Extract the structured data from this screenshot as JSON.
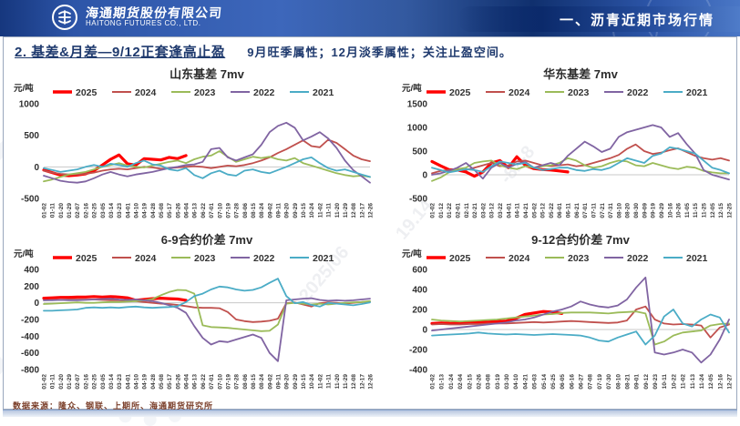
{
  "header": {
    "company_cn": "海通期货股份有限公司",
    "company_en": "HAITONG FUTURES CO., LTD.",
    "section_title": "一、沥青近期市场行情"
  },
  "page": {
    "title": "2. 基差&月差—9/12正套逢高止盈",
    "subtitle": "9月旺季属性；12月淡季属性；关注止盈空间。",
    "source_note": "数据来源：隆众、钢联、上期所、海通期货研究所"
  },
  "watermark": {
    "fragments": [
      "2025/06",
      "19.14",
      "-82-8"
    ]
  },
  "colors": {
    "series_2025": "#FF0000",
    "series_2024": "#C0504D",
    "series_2023": "#9BBB59",
    "series_2022": "#8064A2",
    "series_2021": "#4BACC6",
    "banner_blue": "#2d55a8",
    "title_navy": "#1f3a6e",
    "source_brown": "#7b3f2a"
  },
  "chart_data": [
    {
      "type": "line",
      "title": "山东基差 7mv",
      "ylabel": "元/吨",
      "ylim": [
        -500,
        1000
      ],
      "yticks": [
        1000,
        500,
        0,
        -500
      ],
      "grid": "zero-line-only",
      "legend_position": "top",
      "categories": [
        "01-02",
        "01-11",
        "01-20",
        "01-29",
        "02-07",
        "02-16",
        "02-25",
        "03-05",
        "03-14",
        "03-23",
        "04-01",
        "04-10",
        "04-19",
        "04-28",
        "05-08",
        "05-17",
        "05-26",
        "06-04",
        "06-13",
        "06-22",
        "07-01",
        "07-10",
        "07-19",
        "07-28",
        "08-06",
        "08-15",
        "08-24",
        "09-02",
        "09-11",
        "09-20",
        "09-29",
        "10-15",
        "10-24",
        "11-02",
        "11-11",
        "11-20",
        "11-29",
        "12-08",
        "12-17",
        "12-26"
      ],
      "series": [
        {
          "name": "2025",
          "color": "#FF0000",
          "width": 3.2,
          "values": [
            -50,
            -90,
            -130,
            -140,
            -130,
            -110,
            -60,
            30,
            120,
            190,
            50,
            30,
            130,
            120,
            110,
            150,
            130,
            180,
            null,
            null,
            null,
            null,
            null,
            null,
            null,
            null,
            null,
            null,
            null,
            null,
            null,
            null,
            null,
            null,
            null,
            null,
            null,
            null,
            null,
            null
          ]
        },
        {
          "name": "2024",
          "color": "#C0504D",
          "width": 1.8,
          "values": [
            -60,
            -90,
            -110,
            -120,
            -120,
            -110,
            -90,
            -60,
            -40,
            -30,
            -40,
            -20,
            0,
            -10,
            -30,
            -20,
            -10,
            0,
            10,
            0,
            -20,
            0,
            20,
            10,
            30,
            60,
            100,
            150,
            220,
            280,
            350,
            420,
            330,
            310,
            430,
            380,
            280,
            180,
            120,
            90
          ]
        },
        {
          "name": "2023",
          "color": "#9BBB59",
          "width": 1.8,
          "values": [
            -230,
            -200,
            -160,
            -120,
            -100,
            -80,
            -40,
            0,
            30,
            60,
            20,
            0,
            -10,
            20,
            50,
            80,
            100,
            60,
            120,
            160,
            180,
            250,
            160,
            80,
            120,
            160,
            140,
            160,
            120,
            100,
            140,
            60,
            20,
            -20,
            -60,
            -100,
            -130,
            -150,
            -140,
            -160
          ]
        },
        {
          "name": "2022",
          "color": "#8064A2",
          "width": 1.8,
          "values": [
            -140,
            -180,
            -220,
            -240,
            -250,
            -230,
            -180,
            -120,
            -80,
            -120,
            -150,
            -120,
            -100,
            -80,
            -50,
            -20,
            0,
            30,
            40,
            80,
            280,
            300,
            150,
            100,
            150,
            200,
            350,
            550,
            650,
            700,
            620,
            420,
            480,
            550,
            450,
            300,
            100,
            -50,
            -150,
            -250
          ]
        },
        {
          "name": "2021",
          "color": "#4BACC6",
          "width": 1.8,
          "values": [
            -20,
            -50,
            -80,
            -60,
            -40,
            0,
            30,
            0,
            50,
            30,
            0,
            60,
            100,
            40,
            20,
            -40,
            -60,
            -20,
            -130,
            -180,
            -100,
            -60,
            -120,
            -140,
            -60,
            -40,
            -80,
            -100,
            -50,
            0,
            60,
            120,
            150,
            60,
            -20,
            -60,
            -40,
            -80,
            -120,
            -160
          ]
        }
      ]
    },
    {
      "type": "line",
      "title": "华东基差 7mv",
      "ylabel": "元/吨",
      "ylim": [
        -500,
        1500
      ],
      "yticks": [
        1500,
        1000,
        500,
        0,
        -500
      ],
      "grid": "zero-line-only",
      "legend_position": "top",
      "categories": [
        "01-02",
        "01-12",
        "01-22",
        "02-01",
        "02-11",
        "02-21",
        "03-02",
        "03-12",
        "03-22",
        "04-01",
        "04-11",
        "04-21",
        "05-02",
        "05-12",
        "05-22",
        "06-01",
        "06-11",
        "06-21",
        "07-01",
        "07-11",
        "07-21",
        "07-31",
        "08-10",
        "08-20",
        "08-30",
        "09-09",
        "09-19",
        "09-29",
        "10-16",
        "10-26",
        "11-05",
        "11-15",
        "11-25",
        "12-05",
        "12-15",
        "12-25"
      ],
      "series": [
        {
          "name": "2025",
          "color": "#FF0000",
          "width": 3.2,
          "values": [
            280,
            190,
            110,
            100,
            60,
            -30,
            60,
            250,
            300,
            150,
            380,
            200,
            130,
            110,
            100,
            80,
            60,
            null,
            null,
            null,
            null,
            null,
            null,
            null,
            null,
            null,
            null,
            null,
            null,
            null,
            null,
            null,
            null,
            null,
            null,
            null
          ]
        },
        {
          "name": "2024",
          "color": "#C0504D",
          "width": 1.8,
          "values": [
            30,
            80,
            100,
            130,
            100,
            150,
            200,
            250,
            180,
            200,
            280,
            300,
            250,
            200,
            180,
            200,
            220,
            180,
            200,
            250,
            300,
            350,
            420,
            550,
            640,
            500,
            440,
            470,
            520,
            560,
            480,
            400,
            350,
            320,
            350,
            300
          ]
        },
        {
          "name": "2023",
          "color": "#9BBB59",
          "width": 1.8,
          "values": [
            -130,
            -60,
            50,
            120,
            150,
            250,
            280,
            300,
            200,
            150,
            120,
            180,
            150,
            180,
            200,
            250,
            350,
            300,
            200,
            150,
            180,
            250,
            300,
            280,
            200,
            180,
            250,
            200,
            150,
            120,
            170,
            150,
            80,
            50,
            30,
            30
          ]
        },
        {
          "name": "2022",
          "color": "#8064A2",
          "width": 1.8,
          "values": [
            0,
            30,
            80,
            150,
            250,
            100,
            -80,
            150,
            250,
            150,
            230,
            270,
            150,
            200,
            250,
            200,
            400,
            550,
            700,
            600,
            480,
            550,
            800,
            900,
            950,
            1000,
            1050,
            1000,
            800,
            880,
            650,
            450,
            100,
            0,
            -50,
            -100
          ]
        },
        {
          "name": "2021",
          "color": "#4BACC6",
          "width": 1.8,
          "values": [
            150,
            100,
            50,
            80,
            120,
            100,
            60,
            180,
            280,
            250,
            220,
            250,
            150,
            100,
            120,
            150,
            150,
            100,
            80,
            120,
            100,
            150,
            250,
            350,
            300,
            250,
            400,
            450,
            580,
            550,
            500,
            450,
            300,
            150,
            100,
            30
          ]
        }
      ]
    },
    {
      "type": "line",
      "title": "6-9合约价差 7mv",
      "ylabel": "元/吨",
      "ylim": [
        -800,
        400
      ],
      "yticks": [
        400,
        200,
        0,
        -200,
        -400,
        -600,
        -800
      ],
      "grid": "zero-line-only",
      "legend_position": "top",
      "categories": [
        "01-02",
        "01-11",
        "01-20",
        "01-29",
        "02-07",
        "02-16",
        "02-25",
        "03-05",
        "03-14",
        "03-23",
        "04-01",
        "04-10",
        "04-19",
        "04-28",
        "05-08",
        "05-17",
        "05-26",
        "06-04",
        "06-13",
        "06-22",
        "07-01",
        "07-10",
        "07-19",
        "07-28",
        "08-06",
        "08-15",
        "08-24",
        "09-02",
        "09-11",
        "09-20",
        "09-29",
        "10-15",
        "10-24",
        "11-02",
        "11-11",
        "11-20",
        "11-29",
        "12-08",
        "12-17",
        "12-26"
      ],
      "series": [
        {
          "name": "2025",
          "color": "#FF0000",
          "width": 3.2,
          "values": [
            55,
            60,
            65,
            65,
            70,
            70,
            75,
            70,
            75,
            70,
            60,
            30,
            40,
            50,
            55,
            50,
            45,
            30,
            null,
            null,
            null,
            null,
            null,
            null,
            null,
            null,
            null,
            null,
            null,
            null,
            null,
            null,
            null,
            null,
            null,
            null,
            null,
            null,
            null,
            null
          ]
        },
        {
          "name": "2024",
          "color": "#C0504D",
          "width": 1.8,
          "values": [
            30,
            35,
            35,
            40,
            40,
            40,
            40,
            35,
            30,
            30,
            25,
            20,
            10,
            0,
            -10,
            -15,
            -25,
            -40,
            -55,
            -60,
            -60,
            -65,
            -110,
            -200,
            -220,
            -230,
            -225,
            -215,
            -190,
            -5,
            5,
            -20,
            -45,
            -5,
            5,
            0,
            -10,
            0,
            10,
            15
          ]
        },
        {
          "name": "2023",
          "color": "#9BBB59",
          "width": 1.8,
          "values": [
            -15,
            -10,
            -5,
            0,
            5,
            0,
            0,
            5,
            10,
            10,
            15,
            20,
            30,
            45,
            90,
            130,
            155,
            150,
            110,
            -270,
            -290,
            -295,
            -300,
            -310,
            -320,
            -330,
            -340,
            -335,
            -260,
            -10,
            0,
            -10,
            -20,
            -10,
            -20,
            -10,
            0,
            5,
            10,
            20
          ]
        },
        {
          "name": "2022",
          "color": "#8064A2",
          "width": 1.8,
          "values": [
            30,
            30,
            35,
            30,
            30,
            35,
            40,
            45,
            50,
            40,
            35,
            40,
            30,
            20,
            0,
            -30,
            -60,
            -120,
            -280,
            -420,
            -500,
            -460,
            -470,
            -440,
            -410,
            -380,
            -420,
            -600,
            -700,
            30,
            40,
            50,
            55,
            35,
            25,
            30,
            25,
            30,
            40,
            50
          ]
        },
        {
          "name": "2021",
          "color": "#4BACC6",
          "width": 1.8,
          "values": [
            -95,
            -95,
            -90,
            -85,
            -80,
            -60,
            -55,
            -60,
            -55,
            -60,
            -50,
            -45,
            -55,
            -60,
            -55,
            -50,
            -40,
            10,
            80,
            110,
            160,
            195,
            185,
            160,
            145,
            155,
            185,
            240,
            290,
            80,
            -5,
            10,
            -25,
            -45,
            0,
            -10,
            -20,
            -30,
            -15,
            5
          ]
        }
      ]
    },
    {
      "type": "line",
      "title": "9-12合约价差 7mv",
      "ylabel": "元/吨",
      "ylim": [
        -400,
        600
      ],
      "yticks": [
        600,
        400,
        200,
        0,
        -200,
        -400
      ],
      "grid": "zero-line-only",
      "legend_position": "top",
      "categories": [
        "01-02",
        "01-13",
        "01-24",
        "02-04",
        "02-15",
        "02-26",
        "03-08",
        "03-19",
        "03-30",
        "04-10",
        "04-21",
        "05-03",
        "05-14",
        "05-25",
        "06-05",
        "06-16",
        "06-27",
        "07-08",
        "07-19",
        "07-30",
        "08-10",
        "08-21",
        "09-01",
        "09-12",
        "09-23",
        "10-11",
        "10-22",
        "11-02",
        "11-13",
        "11-24",
        "12-05",
        "12-16",
        "12-27"
      ],
      "series": [
        {
          "name": "2025",
          "color": "#FF0000",
          "width": 3.2,
          "values": [
            60,
            65,
            60,
            65,
            70,
            70,
            75,
            80,
            85,
            110,
            150,
            165,
            180,
            175,
            160,
            null,
            null,
            null,
            null,
            null,
            null,
            null,
            null,
            null,
            null,
            null,
            null,
            null,
            null,
            null,
            null,
            null,
            null
          ]
        },
        {
          "name": "2024",
          "color": "#C0504D",
          "width": 1.8,
          "values": [
            50,
            55,
            50,
            50,
            55,
            55,
            60,
            60,
            60,
            65,
            70,
            75,
            70,
            75,
            80,
            85,
            80,
            75,
            70,
            65,
            70,
            90,
            200,
            230,
            100,
            60,
            50,
            55,
            50,
            40,
            -80,
            20,
            50
          ]
        },
        {
          "name": "2023",
          "color": "#9BBB59",
          "width": 1.8,
          "values": [
            100,
            90,
            85,
            80,
            85,
            90,
            95,
            100,
            110,
            120,
            130,
            140,
            150,
            155,
            165,
            170,
            170,
            170,
            165,
            160,
            170,
            175,
            180,
            160,
            -150,
            -120,
            -60,
            -30,
            -20,
            -10,
            40,
            55,
            60
          ]
        },
        {
          "name": "2022",
          "color": "#8064A2",
          "width": 1.8,
          "values": [
            -10,
            0,
            10,
            20,
            30,
            40,
            50,
            60,
            70,
            90,
            100,
            120,
            150,
            180,
            200,
            230,
            280,
            250,
            230,
            220,
            240,
            300,
            420,
            520,
            -230,
            -250,
            -230,
            -200,
            -230,
            -330,
            -250,
            -100,
            100
          ]
        },
        {
          "name": "2021",
          "color": "#4BACC6",
          "width": 1.8,
          "values": [
            -60,
            -55,
            -50,
            -45,
            -40,
            -30,
            -40,
            -45,
            -50,
            -45,
            -50,
            -55,
            -50,
            -45,
            -50,
            -55,
            -60,
            -80,
            -110,
            -120,
            -80,
            -50,
            -20,
            -150,
            -60,
            130,
            200,
            60,
            30,
            100,
            150,
            120,
            -30
          ]
        }
      ]
    }
  ]
}
